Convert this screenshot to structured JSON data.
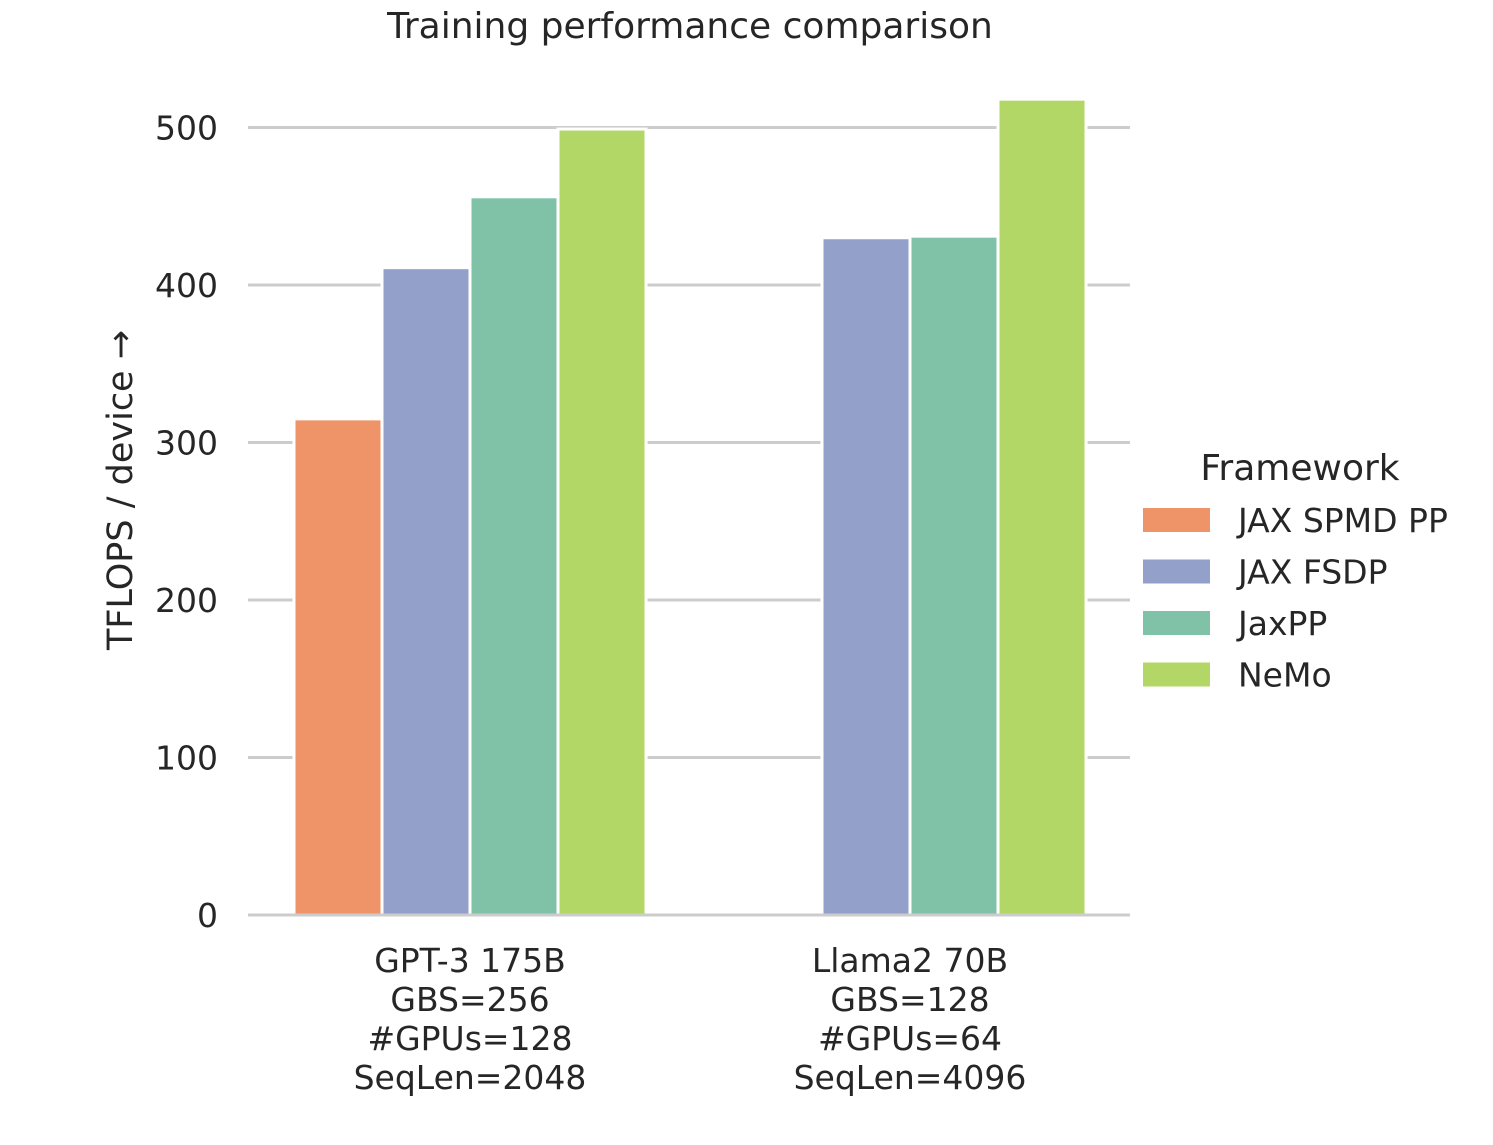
{
  "chart_data": {
    "type": "bar",
    "title": "Training performance comparison",
    "xlabel": "",
    "ylabel": "TFLOPS / device →",
    "ylim": [
      0,
      530
    ],
    "yticks": [
      0,
      100,
      200,
      300,
      400,
      500
    ],
    "grid": true,
    "categories": [
      [
        "GPT-3 175B",
        "GBS=256",
        "#GPUs=128",
        "SeqLen=2048"
      ],
      [
        "Llama2 70B",
        "GBS=128",
        "#GPUs=64",
        "SeqLen=4096"
      ]
    ],
    "legend_title": "Framework",
    "legend_position": "right",
    "series": [
      {
        "name": "JAX SPMD PP",
        "color": "#ef9369",
        "values": [
          315,
          null
        ]
      },
      {
        "name": "JAX FSDP",
        "color": "#93a0c9",
        "values": [
          411,
          430
        ]
      },
      {
        "name": "JaxPP",
        "color": "#80c2a8",
        "values": [
          456,
          431
        ]
      },
      {
        "name": "NeMo",
        "color": "#b3d766",
        "values": [
          499,
          518
        ]
      }
    ]
  }
}
